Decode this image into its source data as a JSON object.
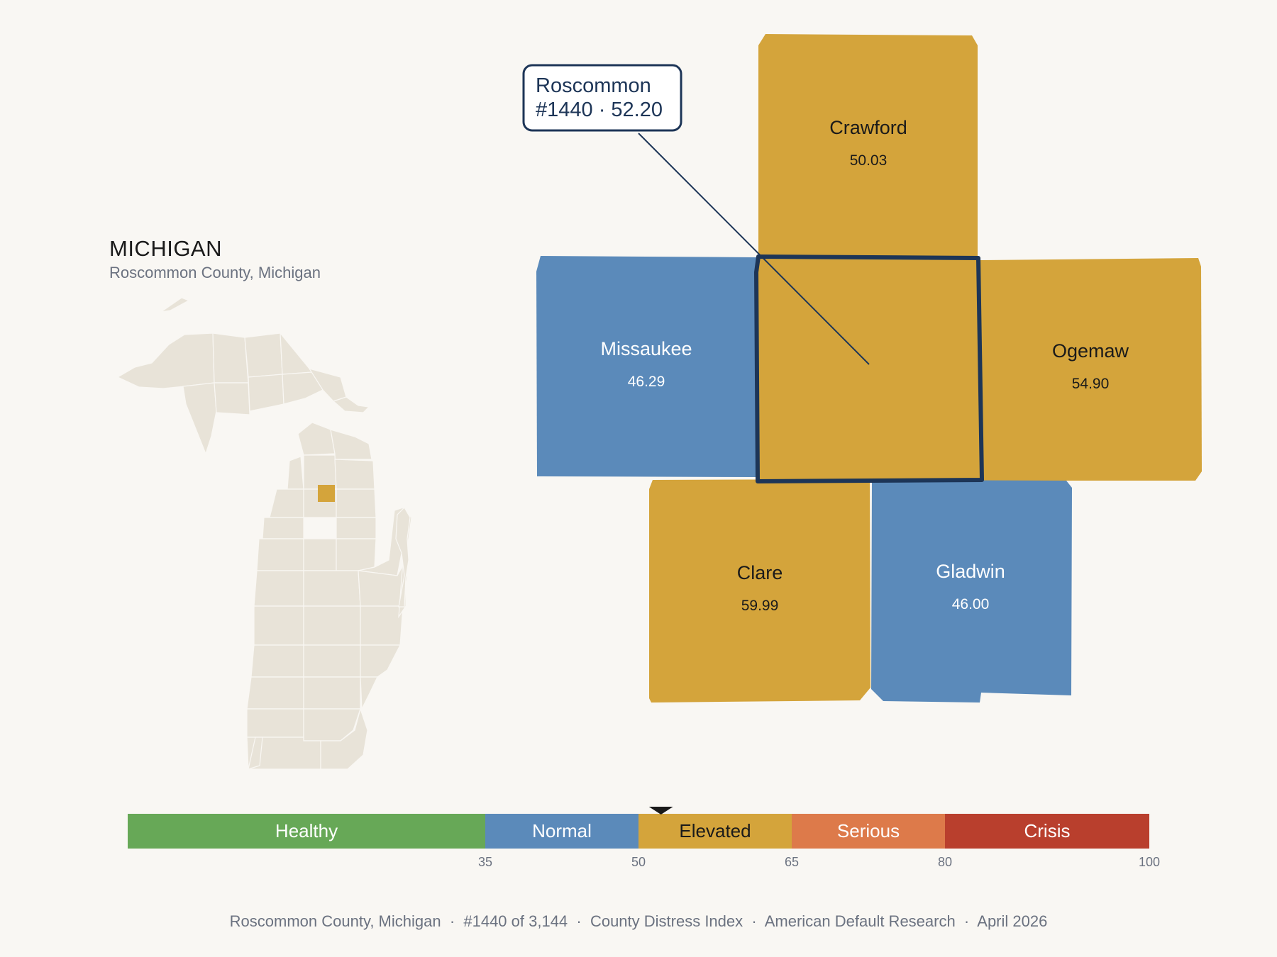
{
  "header": {
    "title": "MICHIGAN",
    "subtitle": "Roscommon County, Michigan"
  },
  "callout": {
    "line1": "Roscommon",
    "line2": "#1440 · 52.20"
  },
  "focus_county": {
    "name": "Roscommon",
    "rank": "#1440",
    "score": 52.2,
    "color": "#d4a43b",
    "outline_color": "#1d3557"
  },
  "neighbors": [
    {
      "name": "Crawford",
      "score": "50.03",
      "color": "#d4a43b",
      "text_color": "#1a1a1a"
    },
    {
      "name": "Missaukee",
      "score": "46.29",
      "color": "#5b8aba",
      "text_color": "#ffffff"
    },
    {
      "name": "Ogemaw",
      "score": "54.90",
      "color": "#d4a43b",
      "text_color": "#1a1a1a"
    },
    {
      "name": "Clare",
      "score": "59.99",
      "color": "#d4a43b",
      "text_color": "#1a1a1a"
    },
    {
      "name": "Gladwin",
      "score": "46.00",
      "color": "#5b8aba",
      "text_color": "#ffffff"
    }
  ],
  "legend": {
    "domain": [
      0,
      100
    ],
    "marker_value": 52.2,
    "segments": [
      {
        "label": "Healthy",
        "from": 0,
        "to": 35,
        "color": "#67a857",
        "text_color": "#ffffff"
      },
      {
        "label": "Normal",
        "from": 35,
        "to": 50,
        "color": "#5b8aba",
        "text_color": "#ffffff"
      },
      {
        "label": "Elevated",
        "from": 50,
        "to": 65,
        "color": "#d4a43b",
        "text_color": "#1a1a1a"
      },
      {
        "label": "Serious",
        "from": 65,
        "to": 80,
        "color": "#dd7a4a",
        "text_color": "#ffffff"
      },
      {
        "label": "Crisis",
        "from": 80,
        "to": 100,
        "color": "#b93f2d",
        "text_color": "#ffffff"
      }
    ],
    "ticks": [
      "35",
      "50",
      "65",
      "80",
      "100"
    ]
  },
  "footer": {
    "text": "Roscommon County, Michigan  ·  #1440 of 3,144  ·  County Distress Index  ·  American Default Research  ·  April 2026"
  },
  "inset_map": {
    "base_color": "#e8e3d8",
    "highlight_color": "#d4a43b"
  }
}
